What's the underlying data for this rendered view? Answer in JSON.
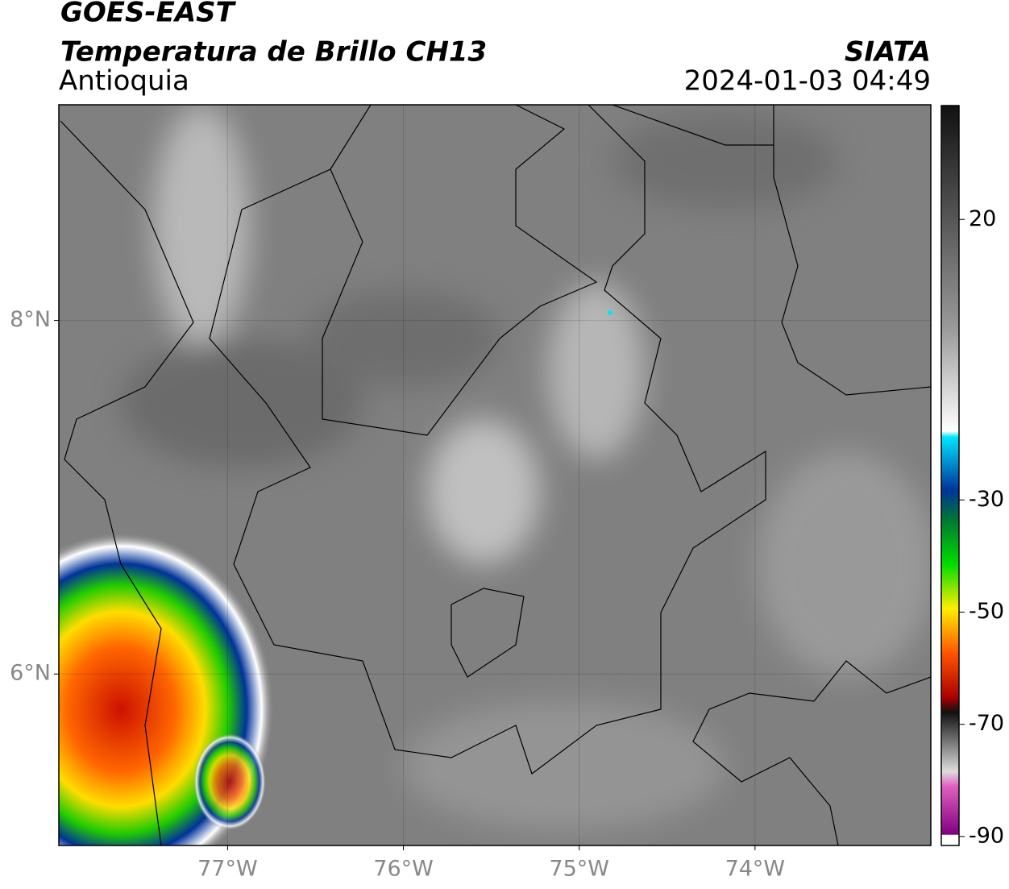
{
  "header": {
    "title": "GOES-EAST",
    "subtitle": "Temperatura de Brillo CH13",
    "region": "Antioquia",
    "agency": "SIATA",
    "datetime": "2024-01-03 04:49"
  },
  "map": {
    "xlim": [
      -77.96,
      -73.0
    ],
    "ylim": [
      5.03,
      9.22
    ],
    "xticks": [
      {
        "value": -77,
        "label": "77°W"
      },
      {
        "value": -76,
        "label": "76°W"
      },
      {
        "value": -75,
        "label": "75°W"
      },
      {
        "value": -74,
        "label": "74°W"
      }
    ],
    "yticks": [
      {
        "value": 8,
        "label": "8°N"
      },
      {
        "value": 6,
        "label": "6°N"
      }
    ],
    "grid": true
  },
  "colorbar": {
    "lim": [
      40.3,
      -91.6
    ],
    "ticks": [
      20,
      -30,
      -50,
      -70,
      -90
    ]
  }
}
